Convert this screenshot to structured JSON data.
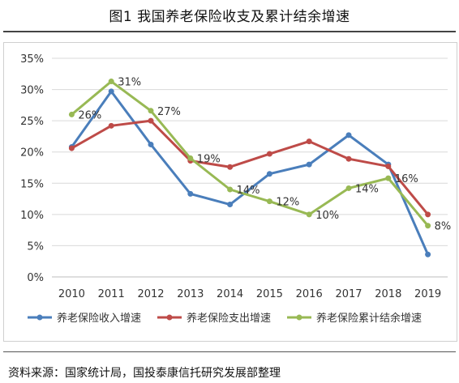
{
  "title": "图1 我国养老保险收支及累计结余增速",
  "source": "资料来源：国家统计局，国投泰康信托研究发展部整理",
  "chart_data": {
    "type": "line",
    "title": "图1 我国养老保险收支及累计结余增速",
    "xlabel": "",
    "ylabel": "",
    "x": [
      "2010",
      "2011",
      "2012",
      "2013",
      "2014",
      "2015",
      "2016",
      "2017",
      "2018",
      "2019"
    ],
    "ylim": [
      0,
      35
    ],
    "yticks": [
      "0%",
      "5%",
      "10%",
      "15%",
      "20%",
      "25%",
      "30%",
      "35%"
    ],
    "grid": true,
    "legend_position": "bottom",
    "series": [
      {
        "name": "养老保险收入增速",
        "color": "#4A7EBB",
        "values": [
          20.8,
          29.7,
          21.2,
          13.3,
          11.6,
          16.5,
          18.0,
          22.7,
          18.0,
          3.6
        ],
        "labels": [
          "",
          "",
          "",
          "",
          "",
          "",
          "",
          "",
          "",
          ""
        ]
      },
      {
        "name": "养老保险支出增速",
        "color": "#BE4B48",
        "values": [
          20.6,
          24.2,
          25.0,
          18.6,
          17.6,
          19.7,
          21.7,
          18.9,
          17.7,
          10.0
        ],
        "labels": [
          "",
          "",
          "",
          "",
          "",
          "",
          "",
          "",
          "",
          ""
        ]
      },
      {
        "name": "养老保险累计结余增速",
        "color": "#98B954",
        "values": [
          26.0,
          31.3,
          26.6,
          19.0,
          14.0,
          12.1,
          10.0,
          14.2,
          15.8,
          8.2
        ],
        "labels": [
          "26%",
          "31%",
          "27%",
          "19%",
          "14%",
          "12%",
          "10%",
          "14%",
          "16%",
          "8%"
        ]
      }
    ]
  }
}
